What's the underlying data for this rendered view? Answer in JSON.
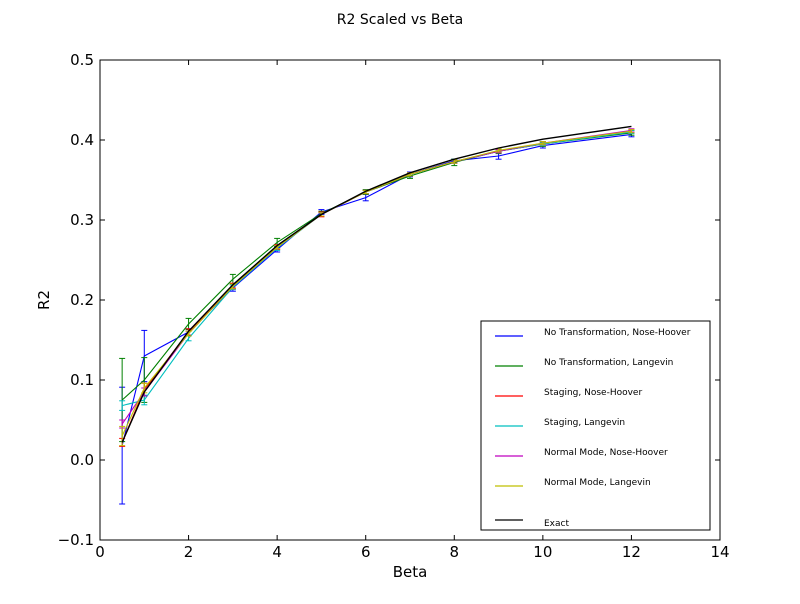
{
  "chart_data": {
    "type": "line",
    "title": "R2 Scaled vs Beta",
    "xlabel": "Beta",
    "ylabel": "R2",
    "xlim": [
      0,
      14
    ],
    "ylim": [
      -0.1,
      0.5
    ],
    "xticks": [
      0,
      2,
      4,
      6,
      8,
      10,
      12,
      14
    ],
    "yticks": [
      -0.1,
      0.0,
      0.1,
      0.2,
      0.3,
      0.4,
      0.5
    ],
    "xtick_labels": [
      "0",
      "2",
      "4",
      "6",
      "8",
      "10",
      "12",
      "14"
    ],
    "ytick_labels": [
      "−0.1",
      "0.0",
      "0.1",
      "0.2",
      "0.3",
      "0.4",
      "0.5"
    ],
    "grid": false,
    "legend_position": "lower-right",
    "x": [
      0.5,
      1,
      2,
      3,
      4,
      5,
      6,
      7,
      8,
      9,
      10,
      12
    ],
    "series": [
      {
        "name": "No Transformation, Nose-Hoover",
        "color": "#0000ff",
        "values": [
          0.018,
          0.13,
          0.16,
          0.215,
          0.263,
          0.31,
          0.328,
          0.357,
          0.374,
          0.38,
          0.393,
          0.407
        ],
        "errors": [
          0.073,
          0.032,
          0.004,
          0.004,
          0.003,
          0.003,
          0.004,
          0.003,
          0.002,
          0.004,
          0.003,
          0.003
        ]
      },
      {
        "name": "No Transformation, Langevin",
        "color": "#008000",
        "values": [
          0.075,
          0.1,
          0.17,
          0.226,
          0.272,
          0.308,
          0.335,
          0.355,
          0.372,
          0.386,
          0.395,
          0.409
        ],
        "errors": [
          0.052,
          0.028,
          0.007,
          0.006,
          0.005,
          0.003,
          0.003,
          0.003,
          0.004,
          0.003,
          0.003,
          0.003
        ]
      },
      {
        "name": "Staging, Nose-Hoover",
        "color": "#ff0000",
        "values": [
          0.022,
          0.088,
          0.16,
          0.218,
          0.266,
          0.307,
          0.335,
          0.357,
          0.373,
          0.386,
          0.395,
          0.411
        ],
        "errors": [
          0.005,
          0.008,
          0.004,
          0.003,
          0.003,
          0.003,
          0.002,
          0.002,
          0.002,
          0.002,
          0.002,
          0.002
        ]
      },
      {
        "name": "Staging, Langevin",
        "color": "#00bfbf",
        "values": [
          0.068,
          0.075,
          0.152,
          0.216,
          0.265,
          0.307,
          0.335,
          0.357,
          0.373,
          0.386,
          0.395,
          0.41
        ],
        "errors": [
          0.006,
          0.006,
          0.003,
          0.003,
          0.003,
          0.002,
          0.002,
          0.002,
          0.002,
          0.002,
          0.002,
          0.002
        ]
      },
      {
        "name": "Normal Mode, Nose-Hoover",
        "color": "#bf00bf",
        "values": [
          0.045,
          0.085,
          0.158,
          0.217,
          0.266,
          0.307,
          0.335,
          0.357,
          0.373,
          0.386,
          0.396,
          0.412
        ],
        "errors": [
          0.005,
          0.005,
          0.003,
          0.003,
          0.002,
          0.002,
          0.002,
          0.002,
          0.002,
          0.002,
          0.002,
          0.002
        ]
      },
      {
        "name": "Normal Mode, Langevin",
        "color": "#bfbf00",
        "values": [
          0.03,
          0.09,
          0.158,
          0.217,
          0.266,
          0.307,
          0.335,
          0.357,
          0.373,
          0.387,
          0.396,
          0.411
        ],
        "errors": [
          0.012,
          0.006,
          0.003,
          0.003,
          0.002,
          0.002,
          0.002,
          0.002,
          0.002,
          0.002,
          0.002,
          0.002
        ]
      },
      {
        "name": "Exact",
        "color": "#000000",
        "values": [
          0.022,
          0.085,
          0.161,
          0.219,
          0.268,
          0.307,
          0.336,
          0.359,
          0.376,
          0.39,
          0.401,
          0.417
        ]
      }
    ]
  }
}
